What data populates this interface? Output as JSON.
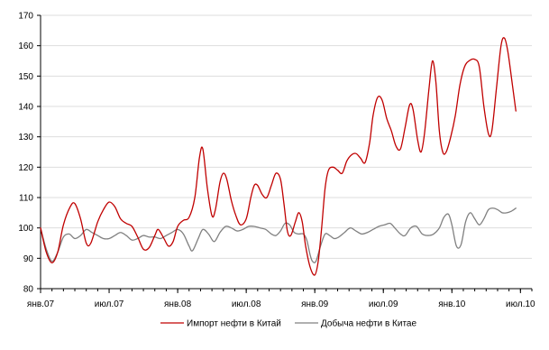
{
  "chart_data": {
    "type": "line",
    "title": "",
    "xlabel": "",
    "ylabel": "",
    "ylim": [
      80,
      170
    ],
    "y_ticks": [
      "80",
      "90",
      "100",
      "110",
      "120",
      "130",
      "140",
      "150",
      "160",
      "170"
    ],
    "x_ticks": [
      "янв.07",
      "июл.07",
      "янв.08",
      "июл.08",
      "янв.09",
      "июл.09",
      "янв.10",
      "июл.10"
    ],
    "x_range_months": [
      0,
      43
    ],
    "grid": "horizontal",
    "legend_position": "bottom",
    "series": [
      {
        "name": "Импорт нефти в Китай",
        "color": "#c00000",
        "values": [
          [
            0.0,
            100
          ],
          [
            0.5,
            92
          ],
          [
            1.0,
            88.5
          ],
          [
            1.5,
            92
          ],
          [
            2.0,
            101
          ],
          [
            2.6,
            107
          ],
          [
            3.0,
            108
          ],
          [
            3.5,
            103
          ],
          [
            4.0,
            95
          ],
          [
            4.4,
            95
          ],
          [
            5.0,
            102
          ],
          [
            5.5,
            106
          ],
          [
            6.0,
            108.5
          ],
          [
            6.5,
            107
          ],
          [
            7.0,
            103
          ],
          [
            7.5,
            101.5
          ],
          [
            8.0,
            100.5
          ],
          [
            8.5,
            97
          ],
          [
            9.0,
            93
          ],
          [
            9.5,
            93.5
          ],
          [
            10.0,
            97.5
          ],
          [
            10.3,
            99.5
          ],
          [
            10.8,
            96.5
          ],
          [
            11.2,
            94
          ],
          [
            11.6,
            95.5
          ],
          [
            12.0,
            100.5
          ],
          [
            12.5,
            102.5
          ],
          [
            13.0,
            103.5
          ],
          [
            13.5,
            110
          ],
          [
            13.9,
            123
          ],
          [
            14.2,
            126
          ],
          [
            14.6,
            113
          ],
          [
            15.0,
            104
          ],
          [
            15.3,
            106
          ],
          [
            15.7,
            115
          ],
          [
            16.0,
            118
          ],
          [
            16.3,
            116
          ],
          [
            16.7,
            109
          ],
          [
            17.1,
            104
          ],
          [
            17.5,
            101
          ],
          [
            18.0,
            103
          ],
          [
            18.4,
            110
          ],
          [
            18.7,
            114
          ],
          [
            19.0,
            114
          ],
          [
            19.4,
            111
          ],
          [
            19.8,
            110
          ],
          [
            20.2,
            114
          ],
          [
            20.6,
            118
          ],
          [
            21.0,
            116
          ],
          [
            21.3,
            108
          ],
          [
            21.6,
            99
          ],
          [
            21.9,
            97.5
          ],
          [
            22.3,
            102
          ],
          [
            22.6,
            105
          ],
          [
            22.9,
            102
          ],
          [
            23.2,
            94
          ],
          [
            23.6,
            87
          ],
          [
            24.0,
            84.5
          ],
          [
            24.3,
            89
          ],
          [
            24.6,
            100
          ],
          [
            24.9,
            113
          ],
          [
            25.2,
            119
          ],
          [
            25.6,
            120
          ],
          [
            26.0,
            119
          ],
          [
            26.4,
            118
          ],
          [
            26.8,
            122
          ],
          [
            27.2,
            124
          ],
          [
            27.6,
            124.5
          ],
          [
            28.0,
            123
          ],
          [
            28.4,
            121.5
          ],
          [
            28.8,
            128
          ],
          [
            29.1,
            137
          ],
          [
            29.5,
            143
          ],
          [
            29.9,
            142
          ],
          [
            30.3,
            136
          ],
          [
            30.7,
            132
          ],
          [
            31.1,
            127
          ],
          [
            31.5,
            126
          ],
          [
            31.9,
            133
          ],
          [
            32.3,
            140.5
          ],
          [
            32.6,
            139
          ],
          [
            33.0,
            129
          ],
          [
            33.3,
            125
          ],
          [
            33.6,
            131
          ],
          [
            34.0,
            146
          ],
          [
            34.3,
            155
          ],
          [
            34.6,
            148
          ],
          [
            34.9,
            132
          ],
          [
            35.2,
            125
          ],
          [
            35.5,
            125
          ],
          [
            35.9,
            130
          ],
          [
            36.3,
            137
          ],
          [
            36.7,
            147
          ],
          [
            37.1,
            153
          ],
          [
            37.5,
            155
          ],
          [
            38.0,
            155.5
          ],
          [
            38.4,
            153
          ],
          [
            38.8,
            140
          ],
          [
            39.2,
            131
          ],
          [
            39.5,
            132
          ],
          [
            39.9,
            146
          ],
          [
            40.3,
            160
          ],
          [
            40.6,
            162.5
          ],
          [
            40.9,
            158
          ],
          [
            41.3,
            147
          ],
          [
            41.6,
            138.5
          ]
        ]
      },
      {
        "name": "Добыча нефти в Китае",
        "color": "#808080",
        "values": [
          [
            0.0,
            100
          ],
          [
            0.5,
            93
          ],
          [
            1.0,
            89
          ],
          [
            1.5,
            92
          ],
          [
            2.0,
            97
          ],
          [
            2.5,
            98
          ],
          [
            3.0,
            96.5
          ],
          [
            3.5,
            97.5
          ],
          [
            4.0,
            99.5
          ],
          [
            4.5,
            98.5
          ],
          [
            5.0,
            97.5
          ],
          [
            5.5,
            96.5
          ],
          [
            6.0,
            96.5
          ],
          [
            6.5,
            97.5
          ],
          [
            7.0,
            98.5
          ],
          [
            7.5,
            97.5
          ],
          [
            8.0,
            96
          ],
          [
            8.5,
            96.5
          ],
          [
            9.0,
            97.5
          ],
          [
            9.5,
            97
          ],
          [
            10.0,
            97
          ],
          [
            10.5,
            96.5
          ],
          [
            11.0,
            97.5
          ],
          [
            11.5,
            98.5
          ],
          [
            12.0,
            99.5
          ],
          [
            12.5,
            98
          ],
          [
            13.0,
            94
          ],
          [
            13.3,
            92.5
          ],
          [
            13.8,
            96.5
          ],
          [
            14.2,
            99.5
          ],
          [
            14.7,
            98
          ],
          [
            15.2,
            95.5
          ],
          [
            15.7,
            98.5
          ],
          [
            16.2,
            100.5
          ],
          [
            16.7,
            100
          ],
          [
            17.2,
            99
          ],
          [
            17.7,
            99.5
          ],
          [
            18.2,
            100.5
          ],
          [
            18.7,
            100.5
          ],
          [
            19.2,
            100
          ],
          [
            19.7,
            99.5
          ],
          [
            20.2,
            98
          ],
          [
            20.6,
            97.5
          ],
          [
            21.0,
            99
          ],
          [
            21.4,
            101.5
          ],
          [
            21.8,
            101
          ],
          [
            22.2,
            98.5
          ],
          [
            22.6,
            98
          ],
          [
            23.0,
            98
          ],
          [
            23.3,
            96
          ],
          [
            23.6,
            91
          ],
          [
            23.8,
            89
          ],
          [
            24.1,
            89
          ],
          [
            24.5,
            94
          ],
          [
            24.9,
            98
          ],
          [
            25.3,
            97.5
          ],
          [
            25.7,
            96.5
          ],
          [
            26.1,
            97
          ],
          [
            26.6,
            98.5
          ],
          [
            27.1,
            100
          ],
          [
            27.6,
            99
          ],
          [
            28.1,
            98
          ],
          [
            28.6,
            98.5
          ],
          [
            29.1,
            99.5
          ],
          [
            29.6,
            100.5
          ],
          [
            30.1,
            101
          ],
          [
            30.6,
            101.5
          ],
          [
            31.0,
            100
          ],
          [
            31.5,
            98
          ],
          [
            31.9,
            97.5
          ],
          [
            32.4,
            100
          ],
          [
            32.9,
            100.5
          ],
          [
            33.4,
            98
          ],
          [
            33.9,
            97.5
          ],
          [
            34.4,
            98
          ],
          [
            34.9,
            100
          ],
          [
            35.3,
            103.5
          ],
          [
            35.7,
            104.5
          ],
          [
            36.0,
            101
          ],
          [
            36.4,
            94
          ],
          [
            36.8,
            94.5
          ],
          [
            37.2,
            102
          ],
          [
            37.6,
            105
          ],
          [
            38.0,
            103
          ],
          [
            38.4,
            101
          ],
          [
            38.8,
            103
          ],
          [
            39.2,
            106
          ],
          [
            39.6,
            106.5
          ],
          [
            40.0,
            106
          ],
          [
            40.4,
            105
          ],
          [
            40.8,
            105
          ],
          [
            41.2,
            105.5
          ],
          [
            41.6,
            106.5
          ]
        ]
      }
    ]
  }
}
